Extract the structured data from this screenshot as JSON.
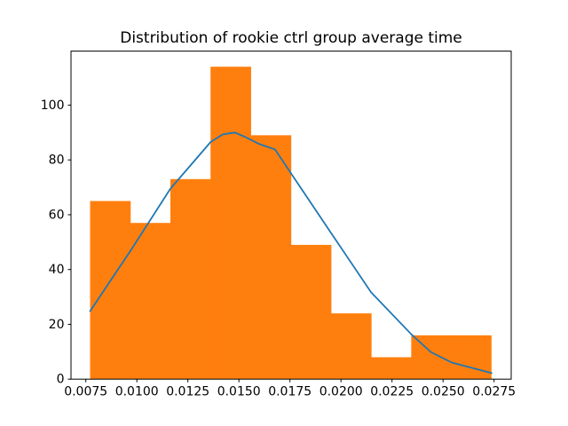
{
  "chart_data": {
    "type": "bar",
    "subtype": "histogram-with-density-curve",
    "title": "Distribution of rookie ctrl group average time",
    "xlabel": "",
    "ylabel": "",
    "grid": false,
    "legend": "none",
    "xlim": [
      0.006774,
      0.028339
    ],
    "ylim": [
      0,
      119.7
    ],
    "bar_color": "#ff7f0e",
    "curve_color": "#1f77b4",
    "axis_color": "#000000",
    "xticks": {
      "values": [
        0.0075,
        0.01,
        0.0125,
        0.015,
        0.0175,
        0.02,
        0.0225,
        0.025,
        0.0275
      ],
      "labels": [
        "0.0075",
        "0.0100",
        "0.0125",
        "0.0150",
        "0.0175",
        "0.0200",
        "0.0225",
        "0.0250",
        "0.0275"
      ]
    },
    "yticks": {
      "values": [
        0,
        20,
        40,
        60,
        80,
        100
      ],
      "labels": [
        "0",
        "20",
        "40",
        "60",
        "80",
        "100"
      ]
    },
    "bins": {
      "edges": [
        0.00771,
        0.009677,
        0.011643,
        0.01361,
        0.015576,
        0.017543,
        0.019509,
        0.021476,
        0.023442,
        0.025409,
        0.027375
      ],
      "counts": [
        65,
        57,
        73,
        114,
        89,
        49,
        24,
        8,
        16,
        16
      ]
    },
    "curve_points": {
      "x": [
        0.00771,
        0.009677,
        0.011643,
        0.01361,
        0.0142,
        0.0148,
        0.0153,
        0.016,
        0.016774,
        0.017543,
        0.019509,
        0.021476,
        0.023442,
        0.0244,
        0.025409,
        0.027375
      ],
      "y": [
        24.8,
        46.7,
        69.5,
        86.5,
        89.3,
        90.0,
        88.4,
        85.8,
        83.8,
        75.2,
        53.4,
        31.7,
        16.4,
        9.9,
        6.1,
        2.2
      ]
    }
  }
}
